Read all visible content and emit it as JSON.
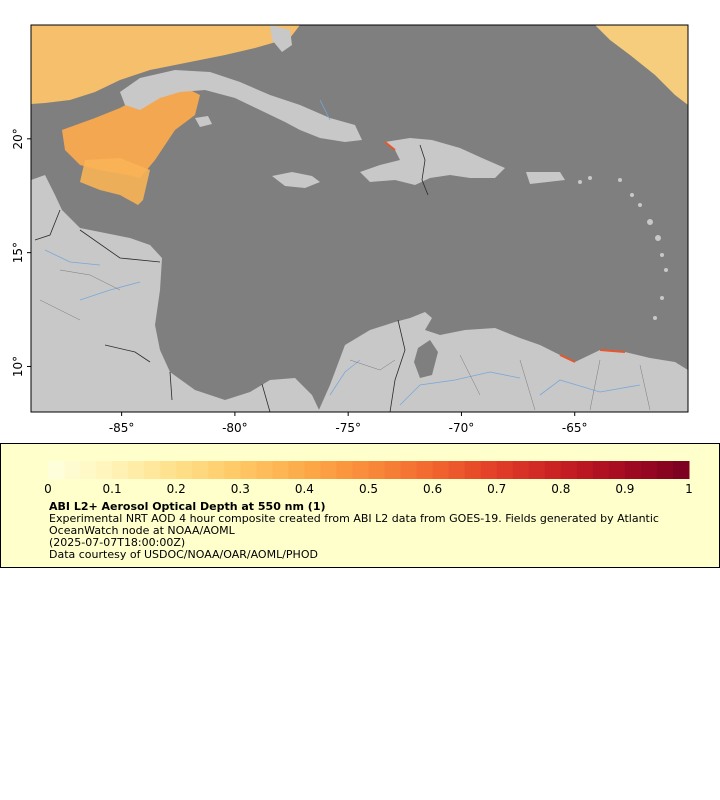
{
  "map": {
    "lat_ticks": [
      "20°",
      "15°",
      "10°"
    ],
    "lon_ticks": [
      "-85°",
      "-80°",
      "-75°",
      "-70°",
      "-65°"
    ],
    "lat_values": [
      20,
      15,
      10
    ],
    "lon_values": [
      -85,
      -80,
      -75,
      -70,
      -65
    ],
    "extent": {
      "lon_min": -89,
      "lon_max": -60,
      "lat_min": 8,
      "lat_max": 25
    },
    "colors": {
      "ocean": "#7f7f7f",
      "land": "#c8c8c8",
      "river": "#7aa7d8",
      "border": "#2b2b2b"
    }
  },
  "colorbar": {
    "min": 0,
    "max": 1,
    "tick_labels": [
      "0",
      "0.1",
      "0.2",
      "0.3",
      "0.4",
      "0.5",
      "0.6",
      "0.7",
      "0.8",
      "0.9",
      "1"
    ],
    "colors": [
      "#ffffe0",
      "#fff3b8",
      "#ffe08a",
      "#ffc864",
      "#fdaa48",
      "#f98a3a",
      "#f2662e",
      "#e23e28",
      "#c81e22",
      "#a30a22",
      "#7a0021"
    ]
  },
  "legend": {
    "title": "ABI L2+ Aerosol Optical Depth at 550 nm (1)",
    "description": "Experimental NRT AOD 4 hour composite created from ABI L2 data from GOES-19. Fields generated by Atlantic OceanWatch node at NOAA/AOML",
    "time": "(2025-07-07T18:00:00Z)",
    "credit": "Data courtesy of USDOC/NOAA/OAR/AOML/PHOD"
  }
}
